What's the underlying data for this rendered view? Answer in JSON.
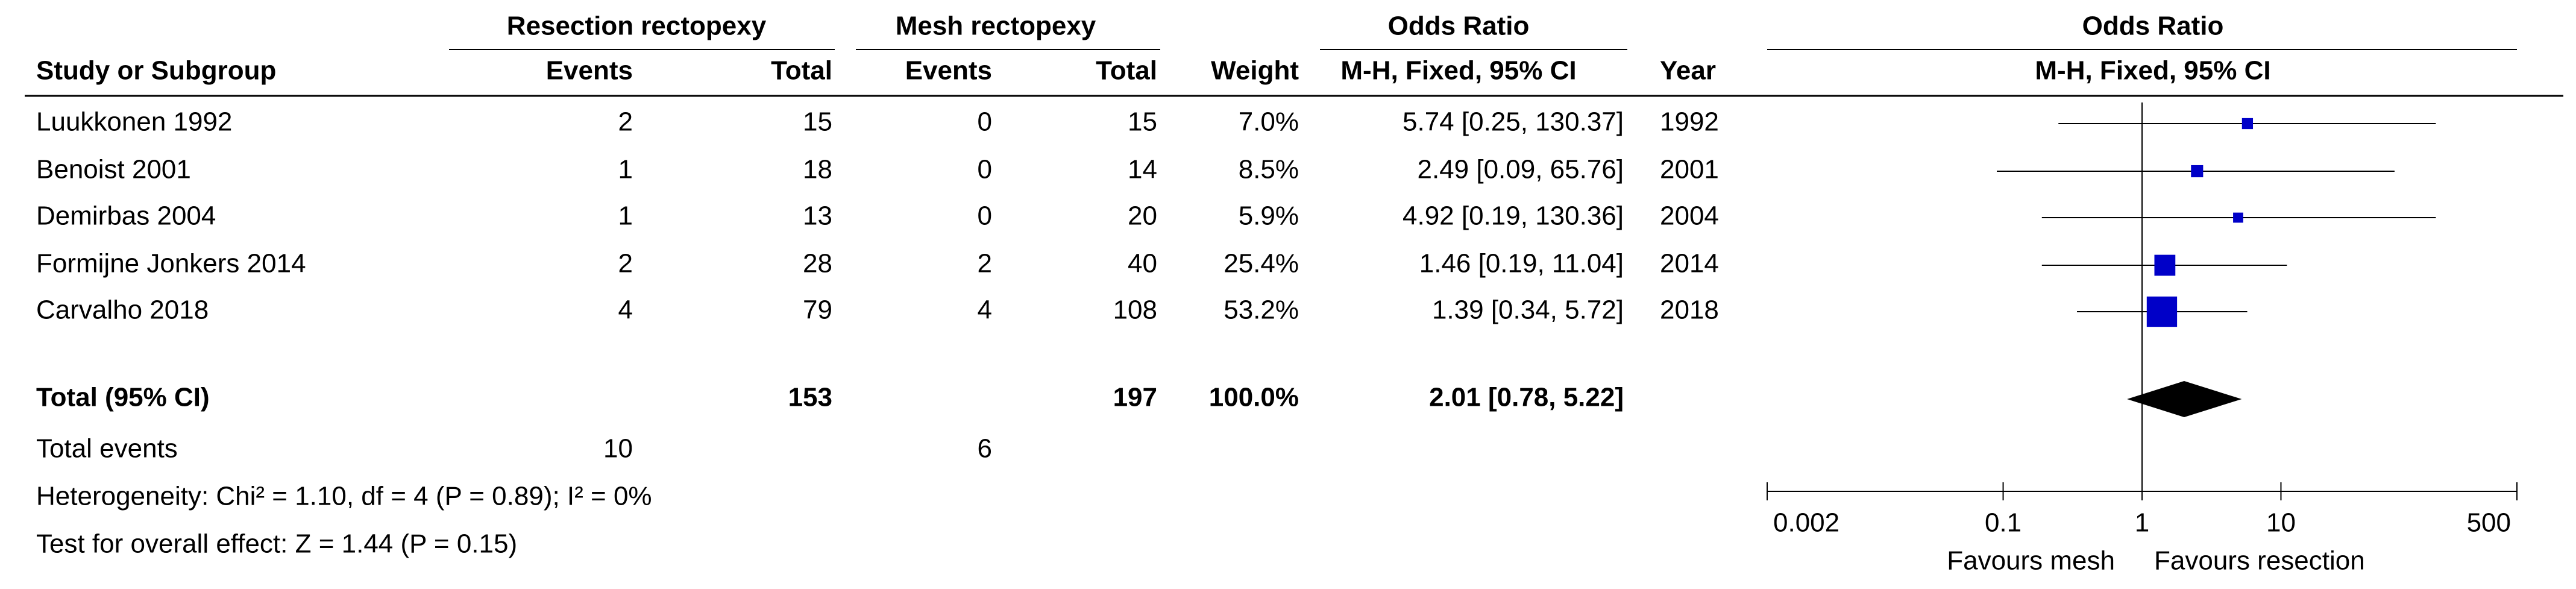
{
  "chart_data": {
    "type": "forest",
    "group_headers": [
      "Resection rectopexy",
      "Mesh rectopexy",
      "Odds Ratio",
      "Odds Ratio"
    ],
    "column_headers": [
      "Study or Subgroup",
      "Events",
      "Total",
      "Events",
      "Total",
      "Weight",
      "M-H, Fixed, 95% CI",
      "Year",
      "M-H, Fixed, 95% CI"
    ],
    "studies": [
      {
        "name": "Luukkonen 1992",
        "events1": 2,
        "total1": 15,
        "events2": 0,
        "total2": 15,
        "weight": 7.0,
        "weight_label": "7.0%",
        "or": 5.74,
        "ci": [
          0.25,
          130.37
        ],
        "ci_label": "5.74 [0.25, 130.37]",
        "year": 1992
      },
      {
        "name": "Benoist 2001",
        "events1": 1,
        "total1": 18,
        "events2": 0,
        "total2": 14,
        "weight": 8.5,
        "weight_label": "8.5%",
        "or": 2.49,
        "ci": [
          0.09,
          65.76
        ],
        "ci_label": "2.49 [0.09, 65.76]",
        "year": 2001
      },
      {
        "name": "Demirbas 2004",
        "events1": 1,
        "total1": 13,
        "events2": 0,
        "total2": 20,
        "weight": 5.9,
        "weight_label": "5.9%",
        "or": 4.92,
        "ci": [
          0.19,
          130.36
        ],
        "ci_label": "4.92 [0.19, 130.36]",
        "year": 2004
      },
      {
        "name": "Formijne Jonkers 2014",
        "events1": 2,
        "total1": 28,
        "events2": 2,
        "total2": 40,
        "weight": 25.4,
        "weight_label": "25.4%",
        "or": 1.46,
        "ci": [
          0.19,
          11.04
        ],
        "ci_label": "1.46 [0.19, 11.04]",
        "year": 2014
      },
      {
        "name": "Carvalho 2018",
        "events1": 4,
        "total1": 79,
        "events2": 4,
        "total2": 108,
        "weight": 53.2,
        "weight_label": "53.2%",
        "or": 1.39,
        "ci": [
          0.34,
          5.72
        ],
        "ci_label": "1.39 [0.34, 5.72]",
        "year": 2018
      }
    ],
    "total": {
      "name": "Total (95% CI)",
      "total1": 153,
      "total2": 197,
      "weight": 100.0,
      "weight_label": "100.0%",
      "or": 2.01,
      "ci": [
        0.78,
        5.22
      ],
      "ci_label": "2.01 [0.78, 5.22]"
    },
    "total_events": {
      "label": "Total events",
      "events1": 10,
      "events2": 6
    },
    "heterogeneity": "Heterogeneity: Chi² = 1.10, df = 4 (P = 0.89); I² = 0%",
    "overall_effect": "Test for overall effect: Z = 1.44 (P = 0.15)",
    "log_scale": true,
    "xlim": [
      0.002,
      500
    ],
    "xticks": [
      0.002,
      0.1,
      1,
      10,
      500
    ],
    "x_labels": [
      "Favours mesh",
      "Favours resection"
    ],
    "color": "#0000c8"
  }
}
